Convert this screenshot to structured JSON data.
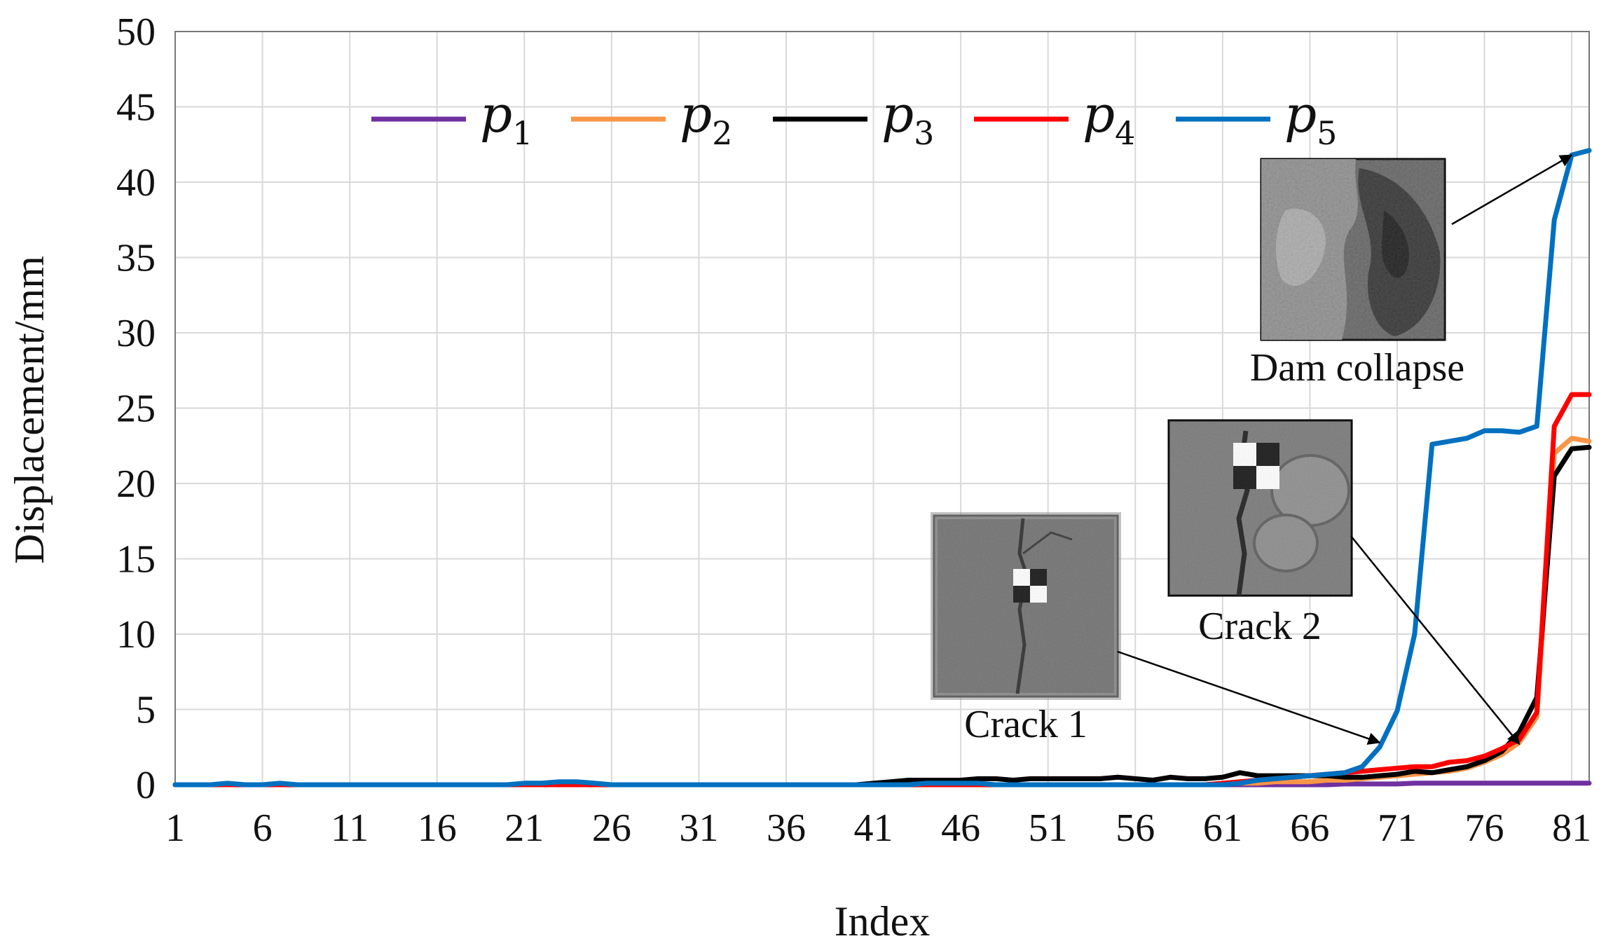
{
  "chart_data": {
    "type": "line",
    "xlabel": "Index",
    "ylabel": "Displacement/mm",
    "xlim": [
      1,
      82
    ],
    "ylim": [
      0,
      50
    ],
    "x_ticks": [
      1,
      6,
      11,
      16,
      21,
      26,
      31,
      36,
      41,
      46,
      51,
      56,
      61,
      66,
      71,
      76,
      81
    ],
    "y_ticks": [
      0,
      5,
      10,
      15,
      20,
      25,
      30,
      35,
      40,
      45,
      50
    ],
    "grid": true,
    "legend_position": "top",
    "x": [
      1,
      2,
      3,
      4,
      5,
      6,
      7,
      8,
      9,
      10,
      11,
      12,
      13,
      14,
      15,
      16,
      17,
      18,
      19,
      20,
      21,
      22,
      23,
      24,
      25,
      26,
      27,
      28,
      29,
      30,
      31,
      32,
      33,
      34,
      35,
      36,
      37,
      38,
      39,
      40,
      41,
      42,
      43,
      44,
      45,
      46,
      47,
      48,
      49,
      50,
      51,
      52,
      53,
      54,
      55,
      56,
      57,
      58,
      59,
      60,
      61,
      62,
      63,
      64,
      65,
      66,
      67,
      68,
      69,
      70,
      71,
      72,
      73,
      74,
      75,
      76,
      77,
      78,
      79,
      80,
      81,
      82
    ],
    "series": [
      {
        "name": "p",
        "subscript": "1",
        "color": "#7030a0",
        "values": [
          0,
          0,
          0,
          0,
          0,
          0,
          0,
          0,
          0,
          0,
          0,
          0,
          0,
          0,
          0,
          0,
          0,
          0,
          0,
          0,
          0,
          0,
          0,
          0,
          0,
          0,
          0,
          0,
          0,
          0,
          0,
          0,
          0,
          0,
          0,
          0,
          0,
          0,
          0,
          0,
          0,
          0,
          0,
          0,
          0,
          0,
          0,
          0,
          0,
          0,
          0,
          0,
          0,
          0,
          0,
          0,
          0,
          0,
          0,
          0,
          0,
          0,
          0,
          0,
          0,
          0,
          0,
          0.05,
          0.05,
          0.05,
          0.05,
          0.1,
          0.1,
          0.1,
          0.1,
          0.1,
          0.1,
          0.1,
          0.1,
          0.1,
          0.1,
          0.1
        ]
      },
      {
        "name": "p",
        "subscript": "2",
        "color": "#f79646",
        "values": [
          0,
          0,
          0,
          0,
          0,
          0,
          0,
          0,
          0,
          0,
          0,
          0,
          0,
          0,
          0,
          0,
          0,
          0,
          0,
          0,
          0,
          0,
          0,
          0,
          0,
          0,
          0,
          0,
          0,
          0,
          0,
          0,
          0,
          0,
          0,
          0,
          0,
          0,
          0,
          0,
          0,
          0,
          0,
          0,
          0,
          0,
          0,
          0,
          0,
          0,
          0,
          0,
          0,
          0,
          0,
          0,
          0,
          0,
          0,
          0,
          0.1,
          0.1,
          0.1,
          0.2,
          0.2,
          0.2,
          0.3,
          0.3,
          0.4,
          0.5,
          0.6,
          0.7,
          0.8,
          0.9,
          1.1,
          1.5,
          2.0,
          2.8,
          4.5,
          22.0,
          23.0,
          22.8
        ]
      },
      {
        "name": "p",
        "subscript": "3",
        "color": "#000000",
        "values": [
          0,
          0,
          0,
          0,
          0,
          0,
          0,
          0,
          0,
          0,
          0,
          0,
          0,
          0,
          0,
          0,
          0,
          0,
          0,
          0,
          0,
          0,
          0,
          0,
          0,
          0,
          0,
          0,
          0,
          0,
          0,
          0,
          0,
          0,
          0,
          0,
          0,
          0,
          0,
          0,
          0.1,
          0.2,
          0.3,
          0.3,
          0.3,
          0.3,
          0.4,
          0.4,
          0.3,
          0.4,
          0.4,
          0.4,
          0.4,
          0.4,
          0.5,
          0.4,
          0.3,
          0.5,
          0.4,
          0.4,
          0.5,
          0.8,
          0.6,
          0.6,
          0.6,
          0.6,
          0.6,
          0.5,
          0.5,
          0.6,
          0.7,
          0.9,
          0.8,
          1.0,
          1.2,
          1.6,
          2.2,
          3.5,
          5.8,
          20.5,
          22.3,
          22.4
        ]
      },
      {
        "name": "p",
        "subscript": "4",
        "color": "#ff0000",
        "values": [
          0,
          0,
          0,
          0,
          0,
          0,
          0,
          0,
          0,
          0,
          0,
          0,
          0,
          0,
          0,
          0,
          0,
          0,
          0,
          0,
          0,
          0,
          0,
          0,
          0,
          0,
          0,
          0,
          0,
          0,
          0,
          0,
          0,
          0,
          0,
          0,
          0,
          0,
          0,
          0,
          0,
          0,
          0,
          0,
          0,
          0,
          0,
          0,
          0,
          0,
          0,
          0,
          0,
          0,
          0,
          0,
          0,
          0,
          0,
          0,
          0.1,
          0.2,
          0.3,
          0.4,
          0.5,
          0.6,
          0.7,
          0.8,
          0.9,
          1.0,
          1.1,
          1.2,
          1.2,
          1.5,
          1.6,
          1.9,
          2.4,
          3.0,
          4.8,
          23.8,
          25.9,
          25.9
        ]
      },
      {
        "name": "p",
        "subscript": "5",
        "color": "#0070c0",
        "values": [
          0,
          0,
          0,
          0.1,
          0,
          0,
          0.1,
          0,
          0,
          0,
          0,
          0,
          0,
          0,
          0,
          0,
          0,
          0,
          0,
          0,
          0.1,
          0.1,
          0.2,
          0.2,
          0.1,
          0,
          0,
          0,
          0,
          0,
          0,
          0,
          0,
          0,
          0,
          0,
          0,
          0,
          0,
          0,
          0,
          0,
          0,
          0.1,
          0.1,
          0.1,
          0.1,
          0,
          0,
          0,
          0,
          0,
          0,
          0,
          0,
          0,
          0,
          0,
          0,
          0,
          0,
          0.1,
          0.3,
          0.4,
          0.5,
          0.6,
          0.7,
          0.8,
          1.2,
          2.5,
          4.9,
          10.0,
          22.6,
          22.8,
          23.0,
          23.5,
          23.5,
          23.4,
          23.8,
          37.5,
          41.8,
          42.1
        ]
      }
    ],
    "annotations": [
      {
        "label": "Dam collapse",
        "target_x": 81,
        "target_y": 41.8
      },
      {
        "label": "Crack 2",
        "target_x": 78,
        "target_y": 2.7
      },
      {
        "label": "Crack 1",
        "target_x": 70,
        "target_y": 2.8
      }
    ]
  }
}
